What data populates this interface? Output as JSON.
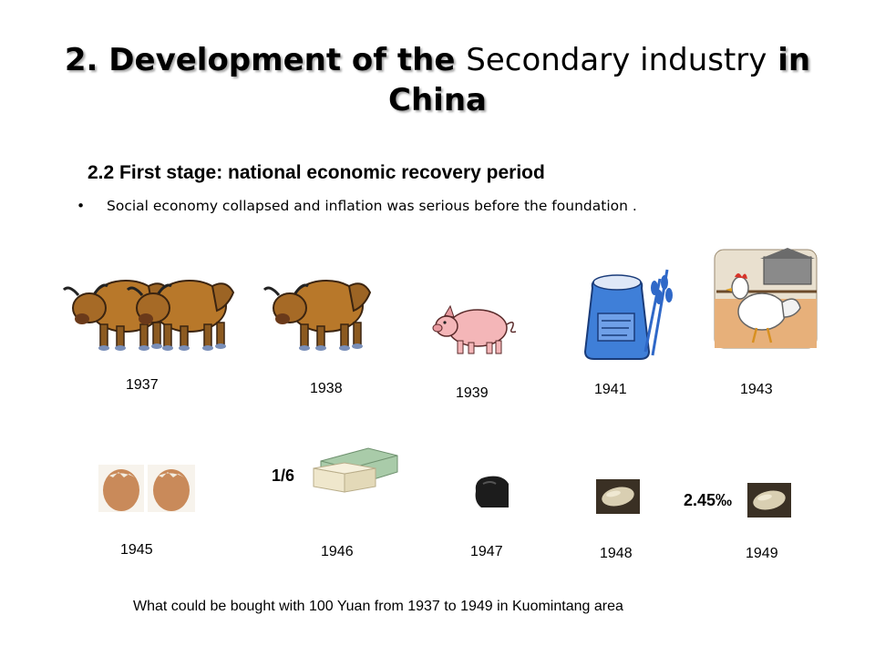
{
  "title": {
    "part1": "2. Development of the ",
    "part2": "Secondary industry",
    "part3": " in China"
  },
  "subtitle": "2.2 First stage: national economic recovery period",
  "bullet": {
    "symbol": "•",
    "text": "Social economy collapsed and inflation was serious before the foundation ."
  },
  "row1": [
    {
      "year": "1937",
      "item": "two-oxen-icon"
    },
    {
      "year": "1938",
      "item": "ox-icon"
    },
    {
      "year": "1939",
      "item": "pig-icon"
    },
    {
      "year": "1941",
      "item": "flour-sack-icon"
    },
    {
      "year": "1943",
      "item": "chicken-icon"
    }
  ],
  "row2": [
    {
      "year": "1945",
      "item": "two-eggs-icon"
    },
    {
      "year": "1946",
      "item": "soap-icon",
      "note": "1/6"
    },
    {
      "year": "1947",
      "item": "coal-icon"
    },
    {
      "year": "1948",
      "item": "rice-grain-icon"
    },
    {
      "year": "1949",
      "item": "rice-grain-icon",
      "note": "2.45‰"
    }
  ],
  "caption": "What could be bought with 100 Yuan from 1937 to 1949 in Kuomintang area",
  "colors": {
    "ox": "#b8782a",
    "pig": "#f4b6b8",
    "sack": "#3f7fd8",
    "egg": "#c98a5a",
    "soap": "#a9cba9",
    "coal": "#1c1c1c",
    "rice": "#d9cfb2"
  }
}
